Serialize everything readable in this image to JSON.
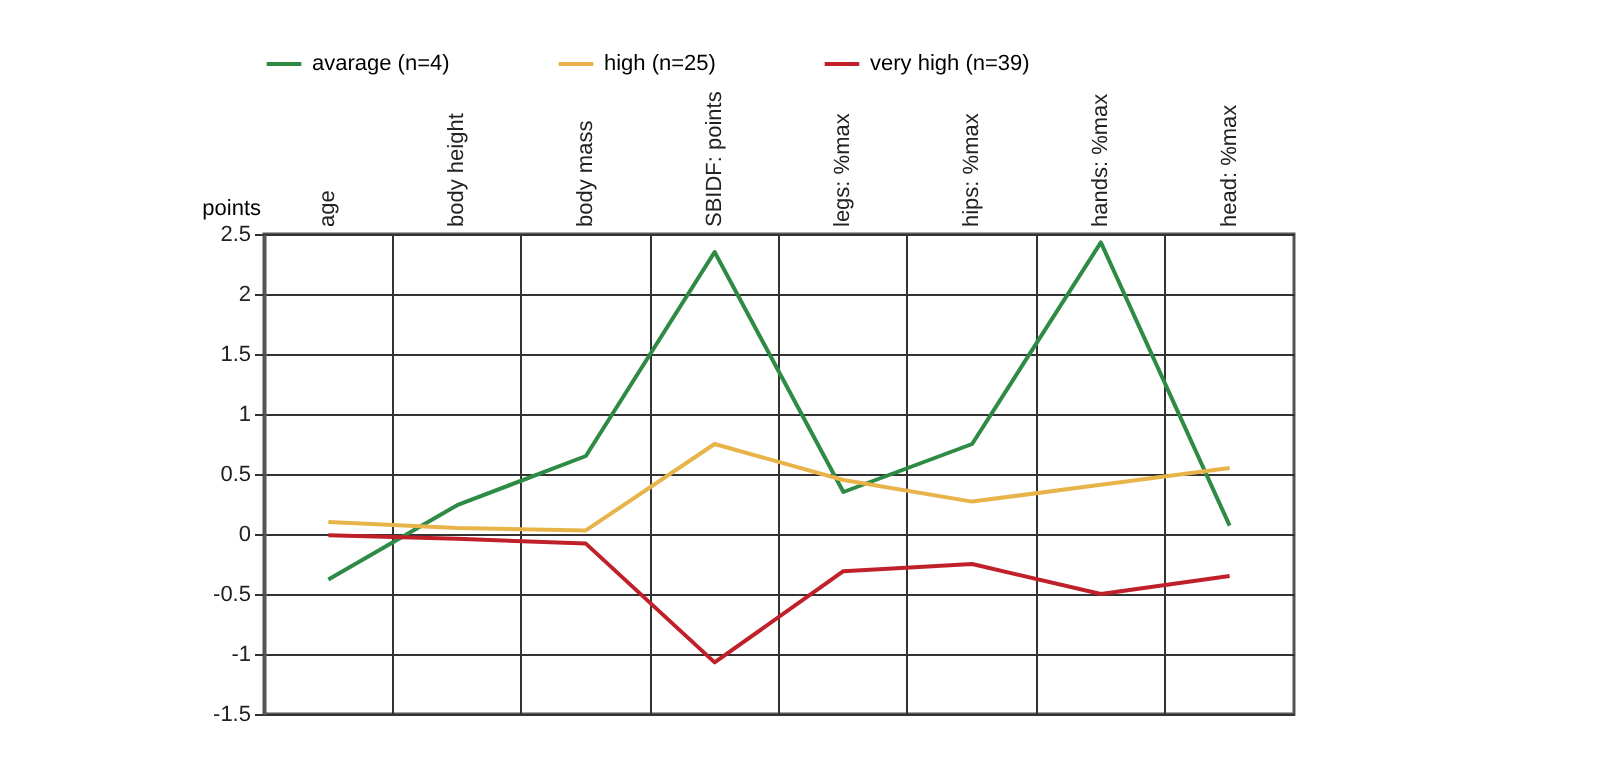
{
  "chart_data": {
    "type": "line",
    "ylabel": "points",
    "categories": [
      "age",
      "body height",
      "body mass",
      "SBIDF: points",
      "legs: %max",
      "hips: %max",
      "hands: %max",
      "head: %max"
    ],
    "series": [
      {
        "name": "avarage (n=4)",
        "color": "#2e8b45",
        "values": [
          -0.38,
          0.24,
          0.65,
          2.35,
          0.35,
          0.75,
          2.43,
          0.07
        ]
      },
      {
        "name": "high (n=25)",
        "color": "#e8b44a",
        "values": [
          0.1,
          0.05,
          0.03,
          0.75,
          0.45,
          0.27,
          0.41,
          0.55
        ]
      },
      {
        "name": "very high (n=39)",
        "color": "#c0202a",
        "values": [
          -0.01,
          -0.04,
          -0.08,
          -1.07,
          -0.31,
          -0.25,
          -0.5,
          -0.35
        ]
      }
    ],
    "ylim": [
      -1.5,
      2.5
    ],
    "yticks": [
      -1.5,
      -1,
      -0.5,
      0,
      0.5,
      1,
      1.5,
      2,
      2.5
    ],
    "grid": true,
    "legend": "top",
    "marker": "none",
    "line_style": "solid"
  }
}
